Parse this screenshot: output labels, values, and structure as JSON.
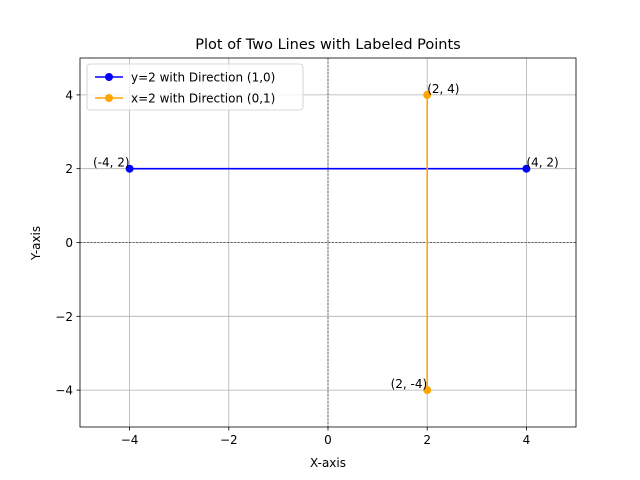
{
  "chart_data": {
    "type": "line",
    "title": "Plot of Two Lines with Labeled Points",
    "xlabel": "X-axis",
    "ylabel": "Y-axis",
    "xlim": [
      -5,
      5
    ],
    "ylim": [
      -5,
      5
    ],
    "xticks": [
      -4,
      -2,
      0,
      2,
      4
    ],
    "yticks": [
      -4,
      -2,
      0,
      2,
      4
    ],
    "xtick_labels": [
      "−4",
      "−2",
      "0",
      "2",
      "4"
    ],
    "ytick_labels": [
      "−4",
      "−2",
      "0",
      "2",
      "4"
    ],
    "grid": true,
    "zero_lines": true,
    "legend": "top-left",
    "series": [
      {
        "name": "y=2 with Direction (1,0)",
        "color": "#0000ff",
        "marker": "circle",
        "points": [
          {
            "x": -4,
            "y": 2,
            "label": "(-4, 2)"
          },
          {
            "x": 4,
            "y": 2,
            "label": "(4, 2)"
          }
        ]
      },
      {
        "name": "x=2 with Direction (0,1)",
        "color": "#ffa500",
        "marker": "circle",
        "points": [
          {
            "x": 2,
            "y": -4,
            "label": "(2, -4)"
          },
          {
            "x": 2,
            "y": 4,
            "label": "(2, 4)"
          }
        ]
      }
    ]
  }
}
